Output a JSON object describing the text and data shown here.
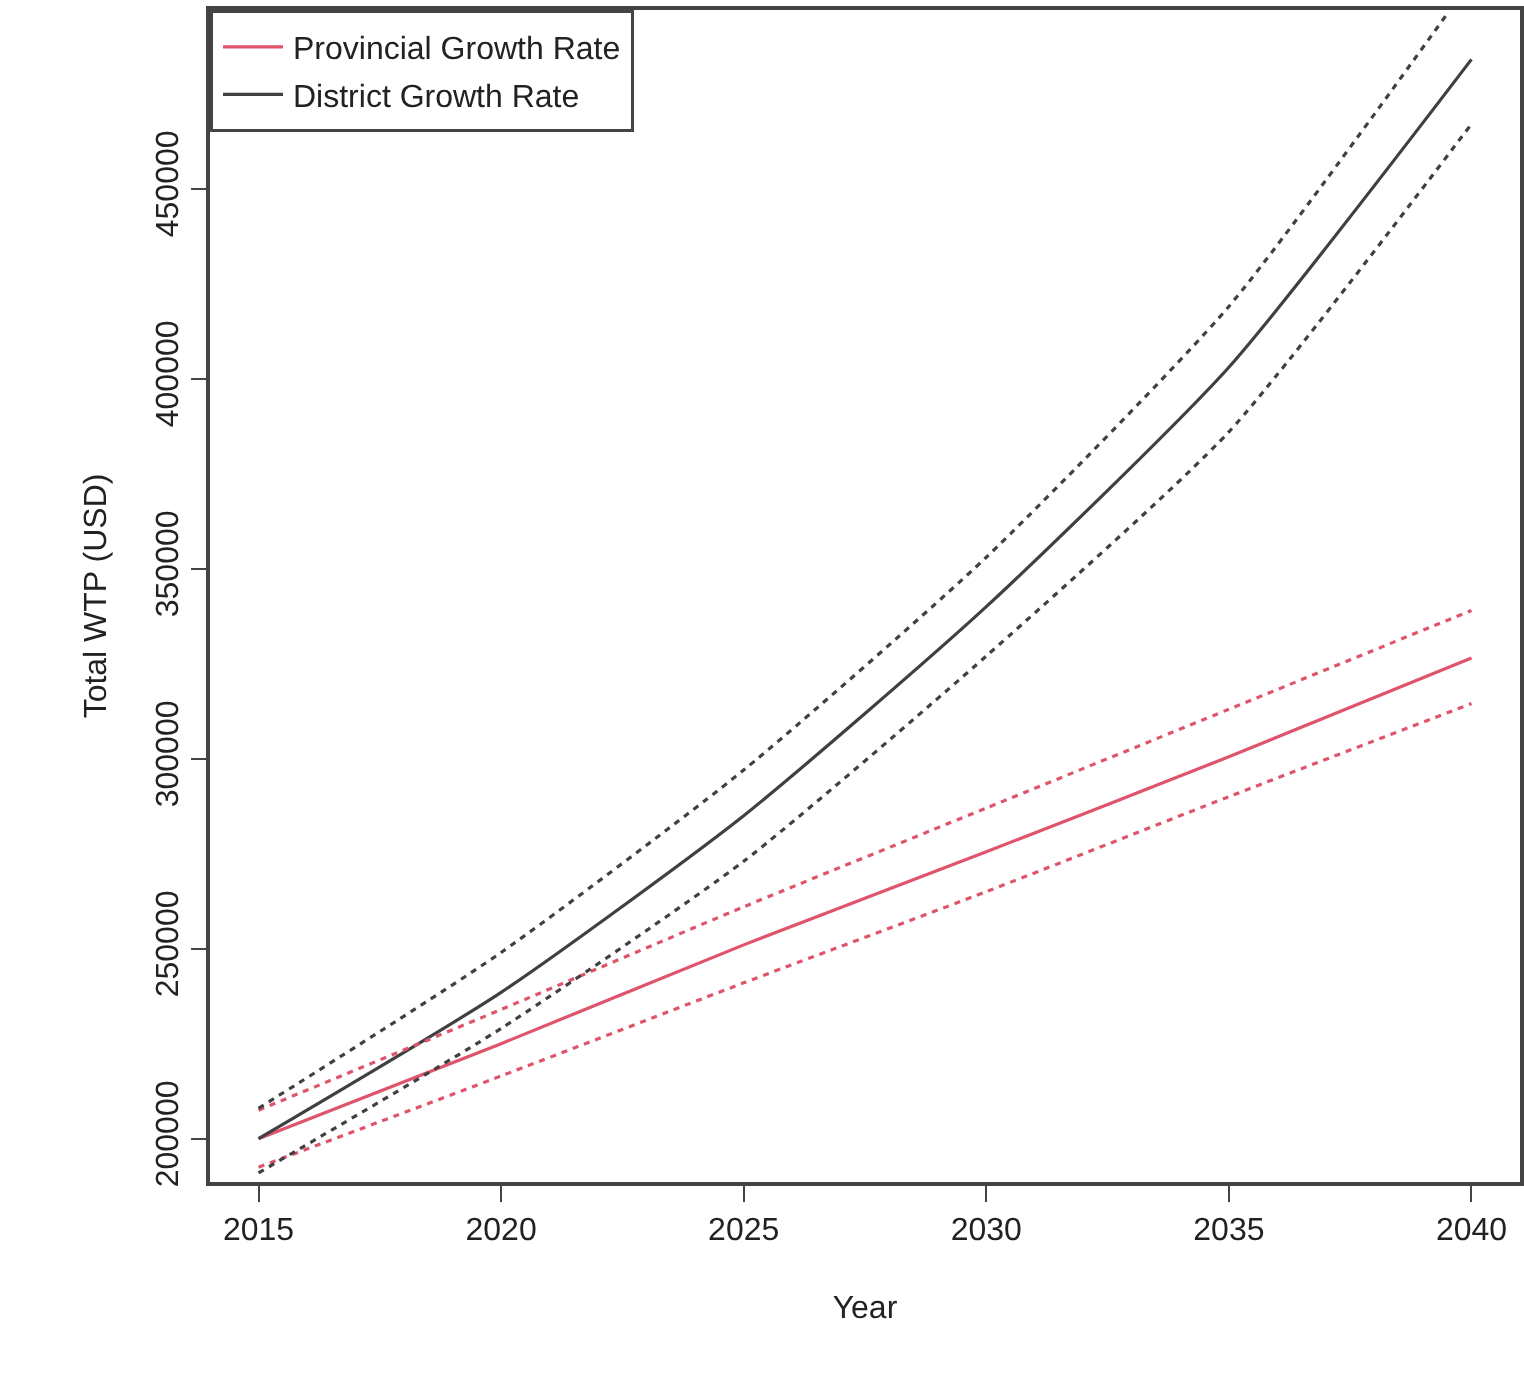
{
  "chart_data": {
    "type": "line",
    "xlabel": "Year",
    "ylabel": "Total WTP (USD)",
    "x": [
      2015,
      2020,
      2025,
      2030,
      2035,
      2040
    ],
    "series": [
      {
        "name": "Provincial Growth Rate",
        "color": "#df536b",
        "values": [
          200000,
          225000,
          251000,
          275500,
          300500,
          326500
        ]
      },
      {
        "name": "District Growth Rate",
        "color": "#404040",
        "values": [
          200000,
          238500,
          285000,
          340000,
          403000,
          484000
        ]
      },
      {
        "color": "#df536b",
        "line_style": "dotted",
        "values": [
          192500,
          216500,
          241000,
          265000,
          290000,
          314500
        ]
      },
      {
        "color": "#df536b",
        "line_style": "dotted",
        "values": [
          207500,
          234000,
          261000,
          287000,
          313000,
          339000
        ]
      },
      {
        "color": "#404040",
        "line_style": "dotted",
        "values": [
          191000,
          229000,
          273000,
          327000,
          386000,
          467000
        ]
      },
      {
        "color": "#404040",
        "line_style": "dotted",
        "x": [
          2015,
          2020,
          2025,
          2030,
          2035,
          2039.5
        ],
        "values": [
          208000,
          249000,
          297000,
          353000,
          419000,
          496000
        ]
      }
    ],
    "xlim": [
      2014,
      2041
    ],
    "ylim": [
      188600,
      497000
    ],
    "xticks": [
      2015,
      2020,
      2025,
      2030,
      2035,
      2040
    ],
    "yticks": [
      200000,
      250000,
      300000,
      350000,
      400000,
      450000
    ],
    "grid": false,
    "legend": "top left",
    "marker": "none",
    "line_style": "solid"
  }
}
